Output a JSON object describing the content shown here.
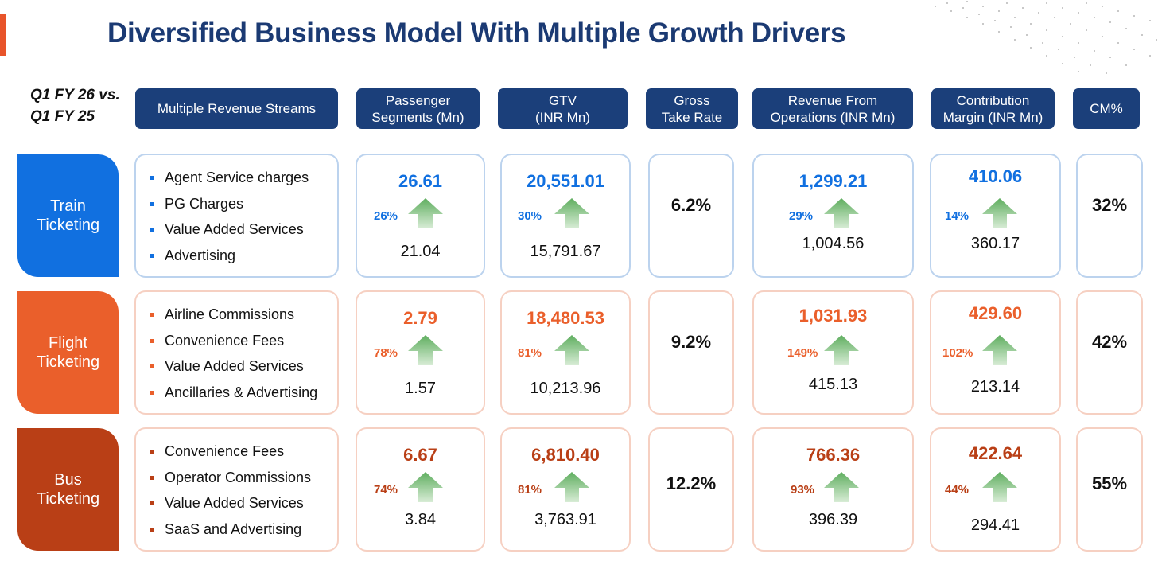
{
  "title": "Diversified Business Model With Multiple Growth Drivers",
  "period_label": "Q1 FY 26 vs.\nQ1 FY 25",
  "headers": {
    "streams": "Multiple Revenue Streams",
    "passenger": "Passenger\nSegments (Mn)",
    "gtv": "GTV\n(INR Mn)",
    "take_rate": "Gross\nTake Rate",
    "revenue": "Revenue From\nOperations (INR Mn)",
    "contribution": "Contribution\nMargin (INR Mn)",
    "cm_pct": "CM%"
  },
  "colors": {
    "title": "#1b3a73",
    "header_bg": "#1b3f7a",
    "arrow_green": "#6db96d",
    "train": "#1170e0",
    "flight": "#ea5f2b",
    "bus": "#b93f16"
  },
  "arrow_icon": "green-up-arrow-icon",
  "rows": [
    {
      "category": "Train\nTicketing",
      "streams": [
        "Agent Service charges",
        "PG Charges",
        "Value Added Services",
        "Advertising"
      ],
      "passenger": {
        "current": "26.61",
        "growth": "26%",
        "previous": "21.04"
      },
      "gtv": {
        "current": "20,551.01",
        "growth": "30%",
        "previous": "15,791.67"
      },
      "take_rate": "6.2%",
      "revenue": {
        "current": "1,299.21",
        "growth": "29%",
        "previous": "1,004.56"
      },
      "contribution": {
        "current": "410.06",
        "growth": "14%",
        "previous": "360.17"
      },
      "cm_pct": "32%"
    },
    {
      "category": "Flight\nTicketing",
      "streams": [
        "Airline Commissions",
        "Convenience Fees",
        "Value Added Services",
        "Ancillaries & Advertising"
      ],
      "passenger": {
        "current": "2.79",
        "growth": "78%",
        "previous": "1.57"
      },
      "gtv": {
        "current": "18,480.53",
        "growth": "81%",
        "previous": "10,213.96"
      },
      "take_rate": "9.2%",
      "revenue": {
        "current": "1,031.93",
        "growth": "149%",
        "previous": "415.13"
      },
      "contribution": {
        "current": "429.60",
        "growth": "102%",
        "previous": "213.14"
      },
      "cm_pct": "42%"
    },
    {
      "category": "Bus\nTicketing",
      "streams": [
        "Convenience Fees",
        "Operator Commissions",
        "Value Added Services",
        "SaaS and Advertising"
      ],
      "passenger": {
        "current": "6.67",
        "growth": "74%",
        "previous": "3.84"
      },
      "gtv": {
        "current": "6,810.40",
        "growth": "81%",
        "previous": "3,763.91"
      },
      "take_rate": "12.2%",
      "revenue": {
        "current": "766.36",
        "growth": "93%",
        "previous": "396.39"
      },
      "contribution": {
        "current": "422.64",
        "growth": "44%",
        "previous": "294.41"
      },
      "cm_pct": "55%"
    }
  ]
}
